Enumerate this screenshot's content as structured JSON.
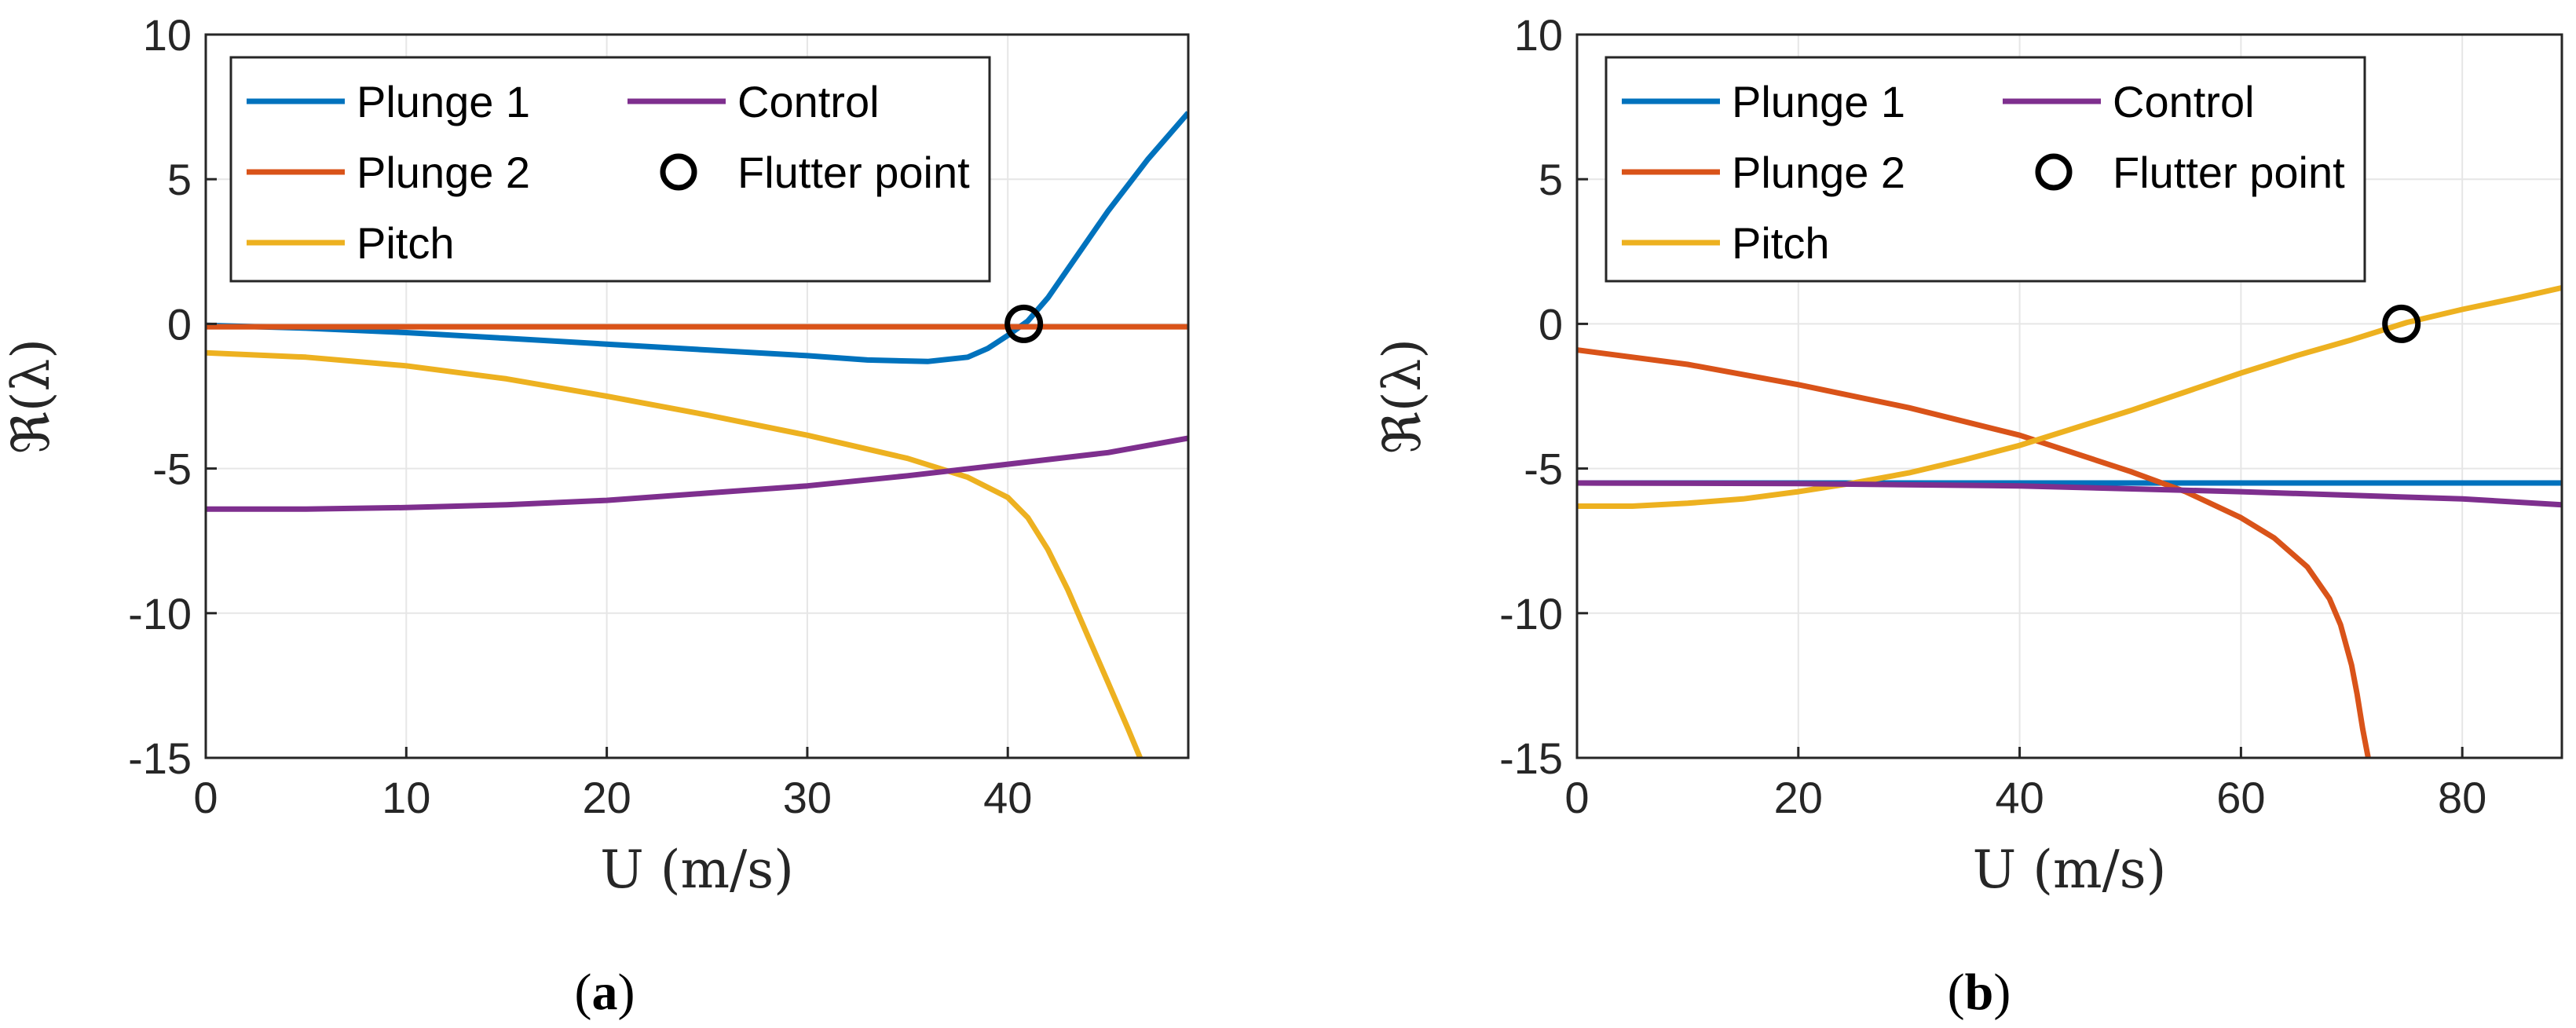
{
  "chart_data": [
    {
      "type": "line",
      "caption_open": "(",
      "caption_letter": "a",
      "caption_close": ")",
      "xlabel": "U (m/s)",
      "ylabel": "ℜ(λ)",
      "xlim": [
        0,
        49
      ],
      "ylim": [
        -15,
        10
      ],
      "xticks": [
        0,
        10,
        20,
        30,
        40
      ],
      "yticks": [
        10,
        5,
        0,
        -5,
        -10,
        -15
      ],
      "grid": true,
      "legend_position": "top-left",
      "series": [
        {
          "name": "Plunge 1",
          "color": "#0072BD",
          "x": [
            0,
            5,
            10,
            15,
            20,
            25,
            30,
            33,
            36,
            38,
            39,
            40,
            41,
            42,
            43,
            44,
            45,
            46,
            47,
            48,
            49
          ],
          "y": [
            -0.05,
            -0.15,
            -0.3,
            -0.5,
            -0.7,
            -0.9,
            -1.1,
            -1.25,
            -1.3,
            -1.15,
            -0.85,
            -0.4,
            0.1,
            0.9,
            1.9,
            2.9,
            3.9,
            4.8,
            5.7,
            6.5,
            7.3
          ]
        },
        {
          "name": "Plunge 2",
          "color": "#D95319",
          "x": [
            0,
            10,
            20,
            30,
            40,
            49
          ],
          "y": [
            -0.1,
            -0.1,
            -0.1,
            -0.1,
            -0.1,
            -0.1
          ]
        },
        {
          "name": "Pitch",
          "color": "#EDB120",
          "x": [
            0,
            5,
            10,
            15,
            20,
            25,
            30,
            35,
            38,
            40,
            41,
            42,
            43,
            44,
            45,
            46,
            46.6
          ],
          "y": [
            -1.0,
            -1.15,
            -1.45,
            -1.9,
            -2.5,
            -3.15,
            -3.85,
            -4.65,
            -5.3,
            -6.0,
            -6.7,
            -7.8,
            -9.2,
            -10.8,
            -12.4,
            -14.0,
            -15.0
          ]
        },
        {
          "name": "Control",
          "color": "#7E2F8E",
          "x": [
            0,
            5,
            10,
            15,
            20,
            25,
            30,
            35,
            40,
            45,
            49
          ],
          "y": [
            -6.4,
            -6.4,
            -6.35,
            -6.25,
            -6.1,
            -5.85,
            -5.6,
            -5.25,
            -4.85,
            -4.45,
            -3.95
          ]
        }
      ],
      "legend_order": [
        "Plunge 1",
        "Control",
        "Plunge 2",
        "Flutter point",
        "Pitch"
      ],
      "flutter_point": {
        "label": "Flutter point",
        "x": 40.8,
        "y": 0
      }
    },
    {
      "type": "line",
      "caption_open": "(",
      "caption_letter": "b",
      "caption_close": ")",
      "xlabel": "U (m/s)",
      "ylabel": "ℜ(λ)",
      "xlim": [
        0,
        89
      ],
      "ylim": [
        -15,
        10
      ],
      "xticks": [
        0,
        20,
        40,
        60,
        80
      ],
      "yticks": [
        10,
        5,
        0,
        -5,
        -10,
        -15
      ],
      "grid": true,
      "legend_position": "top-left",
      "series": [
        {
          "name": "Plunge 1",
          "color": "#0072BD",
          "x": [
            0,
            20,
            40,
            60,
            80,
            89
          ],
          "y": [
            -5.5,
            -5.5,
            -5.5,
            -5.5,
            -5.5,
            -5.5
          ]
        },
        {
          "name": "Plunge 2",
          "color": "#D95319",
          "x": [
            0,
            10,
            20,
            30,
            40,
            50,
            55,
            60,
            63,
            66,
            68,
            69,
            70,
            70.5,
            71,
            71.5
          ],
          "y": [
            -0.9,
            -1.4,
            -2.1,
            -2.9,
            -3.85,
            -5.1,
            -5.8,
            -6.7,
            -7.4,
            -8.4,
            -9.5,
            -10.4,
            -11.8,
            -12.8,
            -14.0,
            -15.0
          ]
        },
        {
          "name": "Pitch",
          "color": "#EDB120",
          "x": [
            0,
            5,
            10,
            15,
            20,
            25,
            30,
            35,
            40,
            45,
            50,
            55,
            60,
            65,
            70,
            75,
            80,
            85,
            89
          ],
          "y": [
            -6.3,
            -6.3,
            -6.2,
            -6.05,
            -5.8,
            -5.5,
            -5.15,
            -4.7,
            -4.2,
            -3.6,
            -3.0,
            -2.35,
            -1.7,
            -1.1,
            -0.55,
            0.05,
            0.5,
            0.9,
            1.25
          ]
        },
        {
          "name": "Control",
          "color": "#7E2F8E",
          "x": [
            0,
            20,
            40,
            60,
            80,
            89
          ],
          "y": [
            -5.5,
            -5.52,
            -5.6,
            -5.8,
            -6.05,
            -6.25
          ]
        }
      ],
      "legend_order": [
        "Plunge 1",
        "Control",
        "Plunge 2",
        "Flutter point",
        "Pitch"
      ],
      "flutter_point": {
        "label": "Flutter point",
        "x": 74.5,
        "y": 0
      }
    }
  ]
}
